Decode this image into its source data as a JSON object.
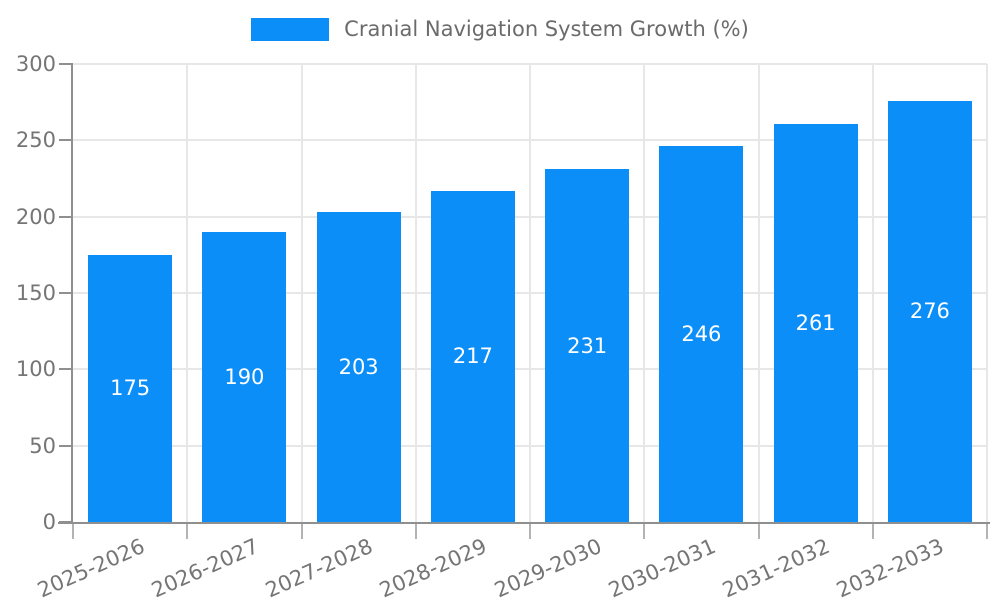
{
  "legend": {
    "label": "Cranial Navigation System Growth (%)"
  },
  "chart_data": {
    "type": "bar",
    "title": "Cranial Navigation System Growth (%)",
    "categories": [
      "2025-2026",
      "2026-2027",
      "2027-2028",
      "2028-2029",
      "2029-2030",
      "2030-2031",
      "2031-2032",
      "2032-2033"
    ],
    "values": [
      175,
      190,
      203,
      217,
      231,
      246,
      261,
      276
    ],
    "xlabel": "",
    "ylabel": "",
    "ylim": [
      0,
      300
    ],
    "yticks": [
      0,
      50,
      100,
      150,
      200,
      250,
      300
    ],
    "grid": true,
    "legend_position": "top",
    "value_labels": "inside-center-white",
    "series_color": "#0c8ef8"
  },
  "colors": {
    "background": "#ffffff",
    "bar": "#0c8ef8",
    "gridline": "#e7e7e7",
    "axis": "#8f8f8f",
    "x_tick": "#b3b3b3",
    "axis_label_text": "#757575",
    "legend_text": "#6b6b6b",
    "value_label_text": "#ffffff"
  }
}
